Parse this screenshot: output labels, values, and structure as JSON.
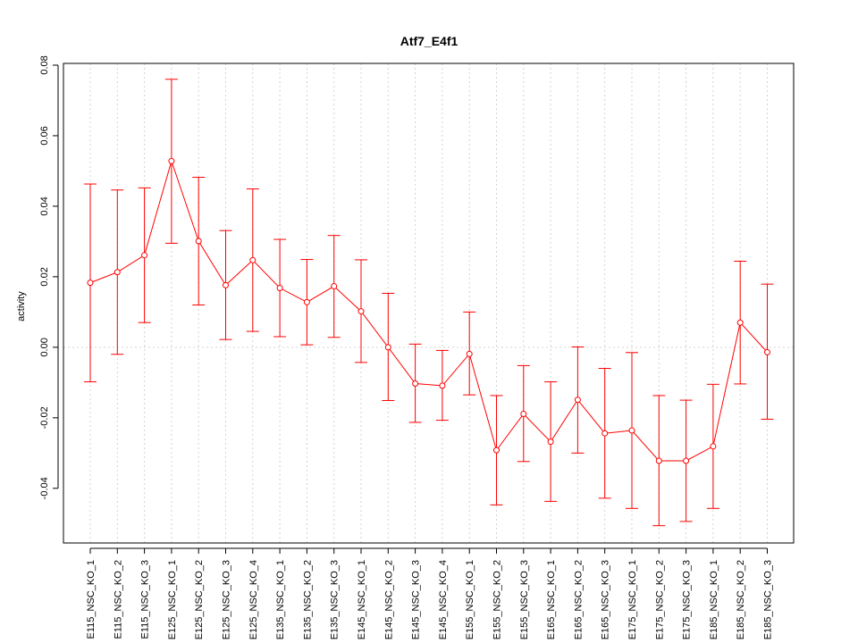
{
  "chart_data": {
    "type": "line",
    "title": "Atf7_E4f1",
    "xlabel": "",
    "ylabel": "activity",
    "ylim": [
      -0.0555,
      0.0805
    ],
    "yticks": [
      -0.04,
      -0.02,
      0.0,
      0.02,
      0.04,
      0.06,
      0.08
    ],
    "ytick_labels": [
      "-0.04",
      "-0.02",
      "0.00",
      "0.02",
      "0.04",
      "0.06",
      "0.08"
    ],
    "grid": true,
    "reference_line": 0,
    "color": "#ff0000",
    "grid_color": "#d3d3d3",
    "categories": [
      "E115_NSC_KO_1",
      "E115_NSC_KO_2",
      "E115_NSC_KO_3",
      "E125_NSC_KO_1",
      "E125_NSC_KO_2",
      "E125_NSC_KO_3",
      "E125_NSC_KO_4",
      "E135_NSC_KO_1",
      "E135_NSC_KO_2",
      "E135_NSC_KO_3",
      "E145_NSC_KO_1",
      "E145_NSC_KO_2",
      "E145_NSC_KO_3",
      "E145_NSC_KO_4",
      "E155_NSC_KO_1",
      "E155_NSC_KO_2",
      "E155_NSC_KO_3",
      "E165_NSC_KO_1",
      "E165_NSC_KO_2",
      "E165_NSC_KO_3",
      "E175_NSC_KO_1",
      "E175_NSC_KO_2",
      "E175_NSC_KO_3",
      "E185_NSC_KO_1",
      "E185_NSC_KO_2",
      "E185_NSC_KO_3"
    ],
    "series": [
      {
        "values": [
          0.0183,
          0.0213,
          0.0261,
          0.0528,
          0.0301,
          0.0176,
          0.0247,
          0.0168,
          0.0128,
          0.0173,
          0.0102,
          0.0,
          -0.0103,
          -0.0109,
          -0.0019,
          -0.0292,
          -0.0189,
          -0.0268,
          -0.0149,
          -0.0244,
          -0.0236,
          -0.0322,
          -0.0322,
          -0.0281,
          0.007,
          -0.0014
        ],
        "upper": [
          0.0463,
          0.0446,
          0.0452,
          0.076,
          0.0482,
          0.0331,
          0.0449,
          0.0306,
          0.0249,
          0.0317,
          0.0248,
          0.0153,
          0.0009,
          -0.0009,
          0.01,
          -0.0137,
          -0.0052,
          -0.0098,
          0.0001,
          -0.006,
          -0.0015,
          -0.0137,
          -0.015,
          -0.0105,
          0.0244,
          0.0179
        ],
        "lower": [
          -0.0098,
          -0.002,
          0.007,
          0.0295,
          0.012,
          0.0022,
          0.0045,
          0.003,
          0.0007,
          0.0028,
          -0.0043,
          -0.0151,
          -0.0213,
          -0.0207,
          -0.0135,
          -0.0447,
          -0.0324,
          -0.0437,
          -0.03,
          -0.0428,
          -0.0457,
          -0.0506,
          -0.0494,
          -0.0457,
          -0.0104,
          -0.0204
        ]
      }
    ]
  }
}
